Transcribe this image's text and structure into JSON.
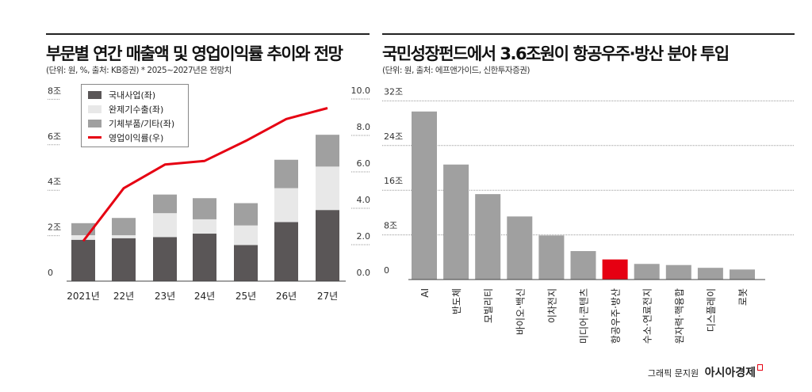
{
  "chart_data": [
    {
      "type": "bar",
      "stacked": true,
      "title": "부문별 연간 매출액 및 영업이익률 추이와 전망",
      "subtitle": "(단위: 원, %, 출처: KB증권)  * 2025~2027년은 전망치",
      "categories": [
        "2021년",
        "22년",
        "23년",
        "24년",
        "25년",
        "26년",
        "27년"
      ],
      "series": [
        {
          "name": "국내사업(좌)",
          "axis": "left",
          "color": "#5a5657",
          "values": [
            1.82,
            1.89,
            1.94,
            2.09,
            1.59,
            2.6,
            3.13
          ]
        },
        {
          "name": "완제기수출(좌)",
          "axis": "left",
          "color": "#e8e8e8",
          "values": [
            0.2,
            0.13,
            1.05,
            0.63,
            0.86,
            1.49,
            1.91
          ]
        },
        {
          "name": "기체부품/기타(좌)",
          "axis": "left",
          "color": "#a0a0a0",
          "values": [
            0.53,
            0.76,
            0.82,
            0.93,
            0.98,
            1.25,
            1.4
          ]
        },
        {
          "name": "영업이익률(우)",
          "axis": "right",
          "type": "line",
          "color": "#e60012",
          "values": [
            2.2,
            5.1,
            6.4,
            6.6,
            7.7,
            8.9,
            9.5
          ]
        }
      ],
      "left_axis": {
        "ylim": [
          0,
          8
        ],
        "ticks": [
          0,
          2,
          4,
          6,
          8
        ],
        "tick_labels": [
          "0",
          "2조",
          "4조",
          "6조",
          "8조"
        ]
      },
      "right_axis": {
        "ylim": [
          0,
          10
        ],
        "ticks": [
          0,
          2,
          4,
          6,
          8,
          10
        ],
        "tick_labels": [
          "0.0",
          "2.0",
          "4.0",
          "6.0",
          "8.0",
          "10.0"
        ]
      },
      "legend": "top-left"
    },
    {
      "type": "bar",
      "title": "국민성장펀드에서 3.6조원이 항공우주·방산 분야 투입",
      "subtitle": "(단위: 원, 출처: 에프앤가이드, 신한투자증권)",
      "categories": [
        "AI",
        "반도체",
        "모빌리티",
        "바이오·백신",
        "이차전지",
        "미디어·콘텐츠",
        "항공우주·방산",
        "수소·연료전지",
        "원자력·핵융합",
        "디스플레이",
        "로봇"
      ],
      "values": [
        30.1,
        20.6,
        15.3,
        11.3,
        7.9,
        5.1,
        3.6,
        2.8,
        2.6,
        2.1,
        1.8
      ],
      "highlight_index": 6,
      "bar_color": "#a0a0a0",
      "highlight_color": "#e60012",
      "ylim": [
        0,
        32
      ],
      "ticks": [
        0,
        8,
        16,
        24,
        32
      ],
      "tick_labels": [
        "0",
        "8조",
        "16조",
        "24조",
        "32조"
      ]
    }
  ],
  "credit": {
    "author": "그래픽 문지원",
    "brand": "아시아경제"
  }
}
